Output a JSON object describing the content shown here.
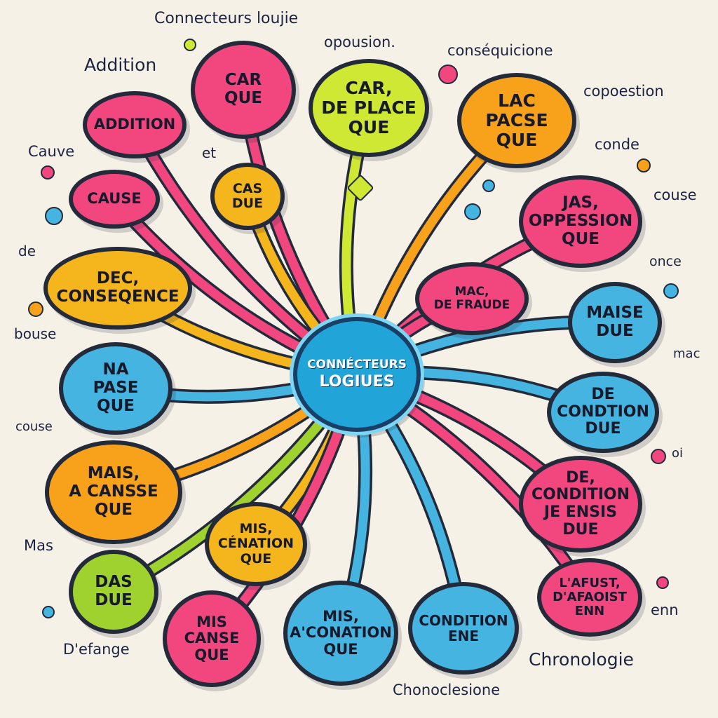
{
  "colors": {
    "pink": "#f2467f",
    "yellow": "#f5b51c",
    "lime": "#cfe833",
    "orange": "#f7a21a",
    "blue": "#46b4e0",
    "green": "#9fd22e",
    "background": "#f6f1e7",
    "center": "#21a5d9"
  },
  "center": {
    "line1": "Connécteurs",
    "line2": "LOGIUES"
  },
  "bubbles": [
    {
      "id": "b1",
      "color": "pink",
      "lines": [
        "Addition"
      ]
    },
    {
      "id": "b2",
      "color": "pink",
      "lines": [
        "Car",
        "que"
      ]
    },
    {
      "id": "b3",
      "color": "lime",
      "lines": [
        "Car,",
        "de place",
        "que"
      ]
    },
    {
      "id": "b4",
      "color": "orange",
      "lines": [
        "Lac",
        "Pacse",
        "que"
      ]
    },
    {
      "id": "b5",
      "color": "pink",
      "lines": [
        "Cause"
      ]
    },
    {
      "id": "b6",
      "color": "yellow",
      "lines": [
        "Cas",
        "due"
      ]
    },
    {
      "id": "b7",
      "color": "pink",
      "lines": [
        "Jas,",
        "Oppession",
        "que"
      ]
    },
    {
      "id": "b8",
      "color": "yellow",
      "lines": [
        "Dec,",
        "Conseqence"
      ]
    },
    {
      "id": "b9",
      "color": "pink",
      "lines": [
        "Mac,",
        "de Fraude"
      ]
    },
    {
      "id": "b10",
      "color": "blue",
      "lines": [
        "Maise",
        "due"
      ]
    },
    {
      "id": "b11",
      "color": "blue",
      "lines": [
        "Na",
        "Pase",
        "que"
      ]
    },
    {
      "id": "b12",
      "color": "blue",
      "lines": [
        "De",
        "Condtion",
        "due"
      ]
    },
    {
      "id": "b13",
      "color": "orange",
      "lines": [
        "Mais,",
        "a Cansse",
        "que"
      ]
    },
    {
      "id": "b14",
      "color": "pink",
      "lines": [
        "De,",
        "Condition",
        "je ensis",
        "due"
      ]
    },
    {
      "id": "b15",
      "color": "yellow",
      "lines": [
        "Mis,",
        "Cénation",
        "que"
      ]
    },
    {
      "id": "b16",
      "color": "green",
      "lines": [
        "Das",
        "due"
      ]
    },
    {
      "id": "b17",
      "color": "pink",
      "lines": [
        "L'afust,",
        "D'afaoist",
        "enn"
      ]
    },
    {
      "id": "b18",
      "color": "pink",
      "lines": [
        "Mis",
        "Canse",
        "que"
      ]
    },
    {
      "id": "b19",
      "color": "blue",
      "lines": [
        "Mis,",
        "A'conation",
        "que"
      ]
    },
    {
      "id": "b20",
      "color": "blue",
      "lines": [
        "Condition",
        "ene"
      ]
    }
  ],
  "labels": {
    "title": "Connecteurs loujie",
    "opousion": "opousion.",
    "consequicione": "conséquicione",
    "addition": "Addition",
    "copoestion": "copoestion",
    "et": "et",
    "cauve": "Cauve",
    "conde": "conde",
    "couse": "couse",
    "de": "de",
    "once": "once",
    "bouse": "bouse",
    "mac": "mac",
    "couse2": "couse",
    "oi": "oi",
    "mas": "Mas",
    "enn": "enn",
    "defange": "D'efange",
    "chronologie": "Chronologie",
    "chonoclesione": "Chonoclesione"
  }
}
